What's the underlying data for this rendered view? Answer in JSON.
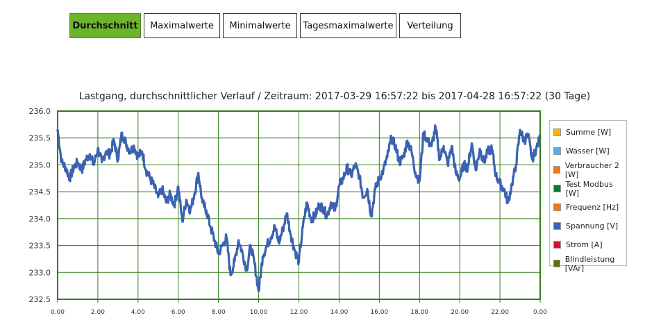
{
  "tabs": [
    {
      "label": "Durchschnitt",
      "active": true
    },
    {
      "label": "Maximalwerte",
      "active": false
    },
    {
      "label": "Minimalwerte",
      "active": false
    },
    {
      "label": "Tagesmaximalwerte",
      "active": false
    },
    {
      "label": "Verteilung",
      "active": false
    }
  ],
  "chart_data": {
    "type": "line",
    "title": "Lastgang, durchschnittlicher Verlauf / Zeitraum: 2017-03-29 16:57:22 bis 2017-04-28 16:57:22 (30 Tage)",
    "xlabel": "",
    "ylabel": "",
    "xlim": [
      0,
      24
    ],
    "ylim": [
      232.5,
      236.0
    ],
    "x_tick_labels": [
      "0.00",
      "2.00",
      "4.00",
      "6.00",
      "8.00",
      "10.00",
      "12.00",
      "14.00",
      "16.00",
      "18.00",
      "20.00",
      "22.00",
      "0.00"
    ],
    "y_tick_labels": [
      "236.0",
      "235.5",
      "235.0",
      "234.5",
      "234.0",
      "233.5",
      "233.0",
      "232.5"
    ],
    "grid": true,
    "legend_position": "right",
    "legend": [
      {
        "name": "Summe [W]",
        "color": "#f5b800"
      },
      {
        "name": "Wasser [W]",
        "color": "#5aaee8"
      },
      {
        "name": "Verbraucher 2 [W]",
        "color": "#f07818"
      },
      {
        "name": "Test Modbus [W]",
        "color": "#0a7a3a"
      },
      {
        "name": "Frequenz [Hz]",
        "color": "#f07818"
      },
      {
        "name": "Spannung [V]",
        "color": "#3a62b0"
      },
      {
        "name": "Strom [A]",
        "color": "#e0102a"
      },
      {
        "name": "Blindleistung [VAr]",
        "color": "#5a7010"
      }
    ],
    "series": [
      {
        "color": "#3a62b0",
        "x": [
          0.0,
          0.2,
          0.4,
          0.6,
          0.8,
          1.0,
          1.2,
          1.4,
          1.6,
          1.8,
          2.0,
          2.2,
          2.4,
          2.6,
          2.8,
          3.0,
          3.2,
          3.4,
          3.6,
          3.8,
          4.0,
          4.2,
          4.4,
          4.6,
          4.8,
          5.0,
          5.2,
          5.4,
          5.6,
          5.8,
          6.0,
          6.2,
          6.4,
          6.6,
          6.8,
          7.0,
          7.2,
          7.4,
          7.6,
          7.8,
          8.0,
          8.2,
          8.4,
          8.6,
          8.8,
          9.0,
          9.2,
          9.4,
          9.6,
          9.8,
          10.0,
          10.2,
          10.4,
          10.6,
          10.8,
          11.0,
          11.2,
          11.4,
          11.6,
          11.8,
          12.0,
          12.2,
          12.4,
          12.6,
          12.8,
          13.0,
          13.2,
          13.4,
          13.6,
          13.8,
          14.0,
          14.2,
          14.4,
          14.6,
          14.8,
          15.0,
          15.2,
          15.4,
          15.6,
          15.8,
          16.0,
          16.2,
          16.4,
          16.6,
          16.8,
          17.0,
          17.2,
          17.4,
          17.6,
          17.8,
          18.0,
          18.2,
          18.4,
          18.6,
          18.8,
          19.0,
          19.2,
          19.4,
          19.6,
          19.8,
          20.0,
          20.2,
          20.4,
          20.6,
          20.8,
          21.0,
          21.2,
          21.4,
          21.6,
          21.8,
          22.0,
          22.2,
          22.4,
          22.6,
          22.8,
          23.0,
          23.2,
          23.4,
          23.6,
          23.8,
          24.0
        ],
        "values": [
          235.65,
          235.05,
          234.95,
          234.75,
          234.95,
          235.05,
          234.9,
          235.1,
          235.2,
          235.0,
          235.3,
          235.05,
          235.25,
          235.2,
          235.45,
          235.1,
          235.6,
          235.4,
          235.25,
          235.35,
          235.15,
          235.25,
          234.9,
          234.75,
          234.6,
          234.4,
          234.55,
          234.3,
          234.45,
          234.25,
          234.6,
          233.95,
          234.35,
          234.15,
          234.45,
          234.85,
          234.3,
          234.15,
          233.85,
          233.6,
          233.35,
          233.5,
          233.65,
          232.95,
          233.2,
          233.6,
          233.35,
          233.05,
          233.5,
          233.15,
          232.65,
          233.3,
          233.5,
          233.65,
          233.85,
          233.55,
          233.8,
          234.1,
          233.7,
          233.4,
          233.2,
          233.85,
          234.3,
          234.0,
          234.05,
          234.25,
          234.2,
          234.05,
          234.3,
          234.15,
          234.6,
          234.75,
          234.95,
          234.8,
          235.0,
          234.8,
          234.4,
          234.55,
          234.05,
          234.55,
          234.75,
          234.9,
          235.15,
          235.5,
          235.35,
          235.05,
          235.15,
          235.45,
          235.25,
          234.85,
          234.7,
          235.6,
          235.45,
          235.35,
          235.7,
          235.1,
          235.35,
          235.0,
          235.35,
          234.85,
          234.75,
          235.0,
          234.95,
          235.4,
          234.9,
          235.3,
          235.05,
          235.25,
          235.3,
          234.8,
          234.65,
          234.55,
          234.3,
          234.65,
          235.0,
          235.65,
          235.45,
          235.55,
          235.1,
          235.3,
          235.5
        ]
      }
    ]
  }
}
